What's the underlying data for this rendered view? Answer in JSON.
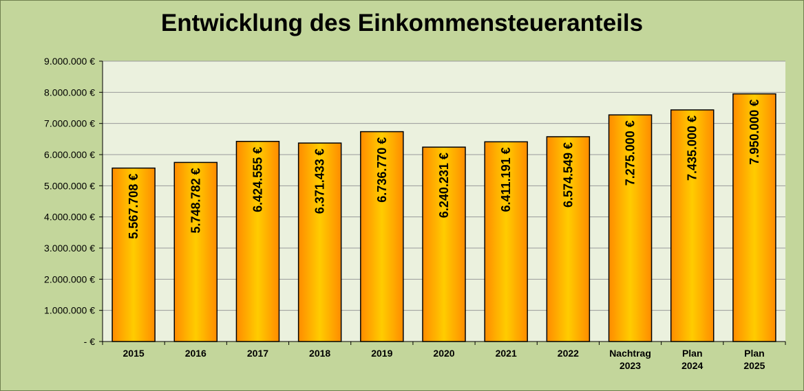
{
  "chart_data": {
    "type": "bar",
    "title": "Entwicklung des Einkommensteueranteils",
    "xlabel": "",
    "ylabel": "",
    "ylim": [
      0,
      9000000
    ],
    "y_ticks": [
      0,
      1000000,
      2000000,
      3000000,
      4000000,
      5000000,
      6000000,
      7000000,
      8000000,
      9000000
    ],
    "y_tick_labels": [
      "-  €",
      "1.000.000 €",
      "2.000.000 €",
      "3.000.000 €",
      "4.000.000 €",
      "5.000.000 €",
      "6.000.000 €",
      "7.000.000 €",
      "8.000.000 €",
      "9.000.000 €"
    ],
    "categories": [
      [
        "2015"
      ],
      [
        "2016"
      ],
      [
        "2017"
      ],
      [
        "2018"
      ],
      [
        "2019"
      ],
      [
        "2020"
      ],
      [
        "2021"
      ],
      [
        "2022"
      ],
      [
        "Nachtrag",
        "2023"
      ],
      [
        "Plan",
        "2024"
      ],
      [
        "Plan",
        "2025"
      ]
    ],
    "values": [
      5567708,
      5748782,
      6424555,
      6371433,
      6736770,
      6240231,
      6411191,
      6574549,
      7275000,
      7435000,
      7950000
    ],
    "data_labels": [
      "5.567.708 €",
      "5.748.782 €",
      "6.424.555 €",
      "6.371.433 €",
      "6.736.770 €",
      "6.240.231 €",
      "6.411.191 €",
      "6.574.549 €",
      "7.275.000 €",
      "7.435.000 €",
      "7.950.000 €"
    ],
    "grid": true,
    "legend": "none",
    "colors": {
      "background": "#c3d69b",
      "plot_area": "#ebf1de",
      "bar_edge": "#ff8c00",
      "bar_center": "#ffcc00",
      "bar_outline": "#000000",
      "gridline": "#999999"
    }
  }
}
